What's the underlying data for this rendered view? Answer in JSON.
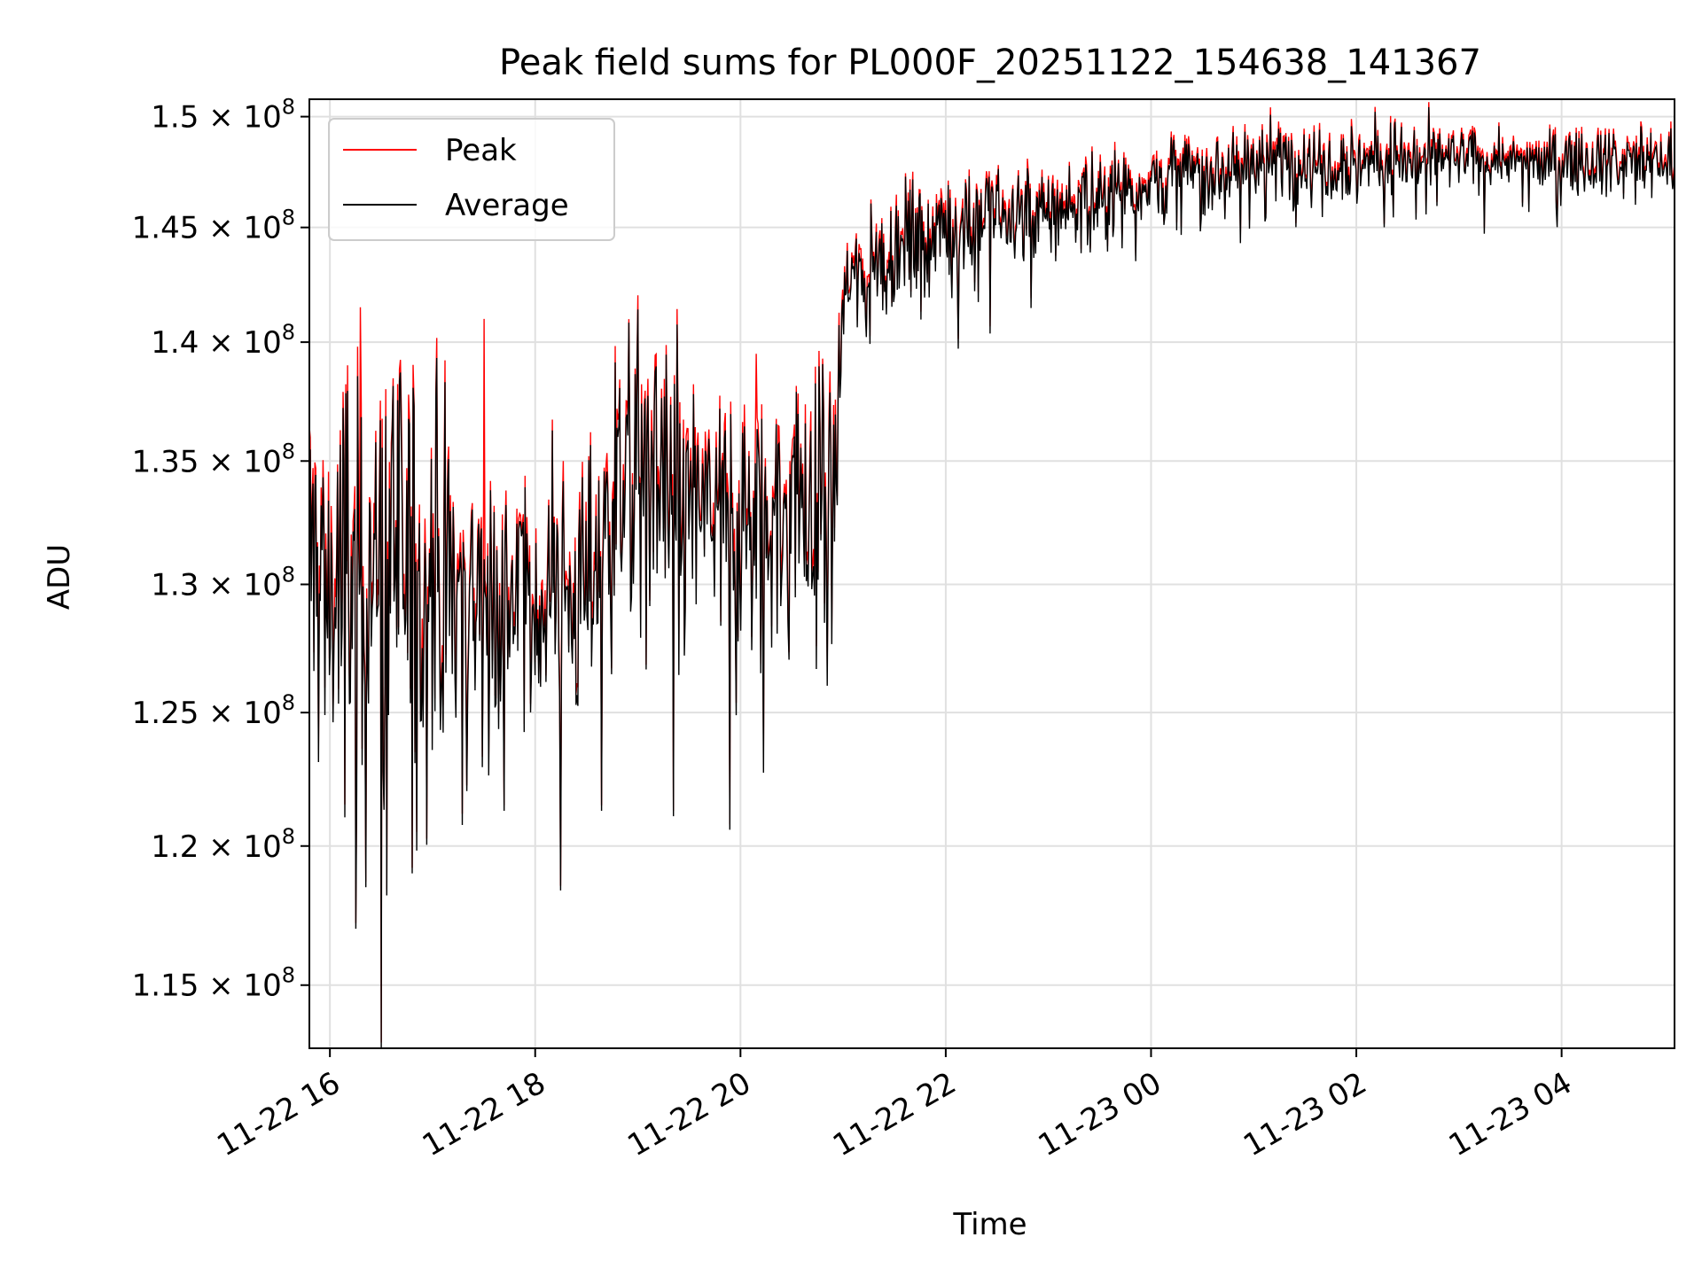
{
  "chart_data": {
    "type": "line",
    "title": "Peak field sums for PL000F_20251122_154638_141367",
    "xlabel": "Time",
    "ylabel": "ADU",
    "yscale": "log",
    "ylim": [
      112800000,
      150800000
    ],
    "xlim_hours": [
      -0.2,
      13.1
    ],
    "x_ticks": [
      {
        "label": "11-22 16",
        "hour": 0
      },
      {
        "label": "11-22 18",
        "hour": 2
      },
      {
        "label": "11-22 20",
        "hour": 4
      },
      {
        "label": "11-22 22",
        "hour": 6
      },
      {
        "label": "11-23 00",
        "hour": 8
      },
      {
        "label": "11-23 02",
        "hour": 10
      },
      {
        "label": "11-23 04",
        "hour": 12
      }
    ],
    "y_ticks": [
      {
        "mant": "1.15",
        "exp": "8",
        "value": 115000000
      },
      {
        "mant": "1.2",
        "exp": "8",
        "value": 120000000
      },
      {
        "mant": "1.25",
        "exp": "8",
        "value": 125000000
      },
      {
        "mant": "1.3",
        "exp": "8",
        "value": 130000000
      },
      {
        "mant": "1.35",
        "exp": "8",
        "value": 135000000
      },
      {
        "mant": "1.4",
        "exp": "8",
        "value": 140000000
      },
      {
        "mant": "1.45",
        "exp": "8",
        "value": 145000000
      },
      {
        "mant": "1.5",
        "exp": "8",
        "value": 150000000
      }
    ],
    "grid": true,
    "legend_position": "top-left",
    "series": [
      {
        "name": "Peak",
        "color": "#ff0000"
      },
      {
        "name": "Average",
        "color": "#000000"
      }
    ],
    "trend": {
      "hours": [
        -0.2,
        0.0,
        0.5,
        1.0,
        1.5,
        2.0,
        2.5,
        2.8,
        3.0,
        3.5,
        4.0,
        4.5,
        4.9,
        5.0,
        5.2,
        5.5,
        6.0,
        6.5,
        7.0,
        7.5,
        8.0,
        8.5,
        9.0,
        9.5,
        10.0,
        10.5,
        11.0,
        11.5,
        12.0,
        12.5,
        13.1
      ],
      "values": [
        131000000,
        129500000,
        131000000,
        130500000,
        129500000,
        129000000,
        130000000,
        134000000,
        135000000,
        133000000,
        132000000,
        133000000,
        133000000,
        142000000,
        143000000,
        144000000,
        145000000,
        145500000,
        145500000,
        146500000,
        147000000,
        147500000,
        148000000,
        148000000,
        148000000,
        148000000,
        148000000,
        148000000,
        148000000,
        148000000,
        148000000
      ]
    },
    "noise_amplitude": {
      "hours": [
        -0.2,
        1.0,
        1.5,
        2.5,
        3.5,
        4.5,
        4.9,
        5.0,
        6.0,
        8.0,
        10.0,
        11.5,
        13.1
      ],
      "values": [
        4500000,
        4500000,
        2200000,
        3000000,
        3000000,
        3200000,
        3000000,
        1500000,
        1300000,
        1000000,
        1000000,
        600000,
        900000
      ]
    },
    "notable_points": [
      {
        "hour": 0.25,
        "average": 117000000
      },
      {
        "hour": 0.35,
        "average": 118500000
      },
      {
        "hour": 0.5,
        "average": 112800000
      },
      {
        "hour": 0.55,
        "average": 118200000
      },
      {
        "hour": 0.8,
        "average": 119000000
      },
      {
        "hour": 1.5,
        "peak": 141000000,
        "average": 131000000
      },
      {
        "hour": 1.7,
        "average": 121300000
      },
      {
        "hour": 2.65,
        "average": 121300000
      },
      {
        "hour": 3.35,
        "average": 121100000
      },
      {
        "hour": 3.9,
        "average": 120600000
      },
      {
        "hour": 0.3,
        "peak": 141500000
      },
      {
        "hour": 4.15,
        "peak": 139500000
      }
    ]
  }
}
